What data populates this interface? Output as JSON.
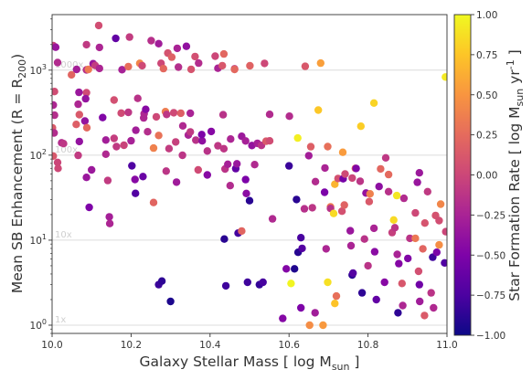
{
  "chart_data": {
    "type": "scatter",
    "xlabel": "Galaxy Stellar Mass [ log M",
    "xlabel_sub": "sun",
    "xlabel_end": " ]",
    "ylabel": "Mean SB Enhancement (R = R",
    "ylabel_sub": "200",
    "ylabel_end": ")",
    "xlim": [
      10.0,
      11.0
    ],
    "ylim": [
      0.8,
      4500
    ],
    "yscale": "log",
    "x_ticks": [
      10.0,
      10.2,
      10.4,
      10.6,
      10.8,
      11.0
    ],
    "x_tick_labels": [
      "10.0",
      "10.2",
      "10.4",
      "10.6",
      "10.8",
      "11.0"
    ],
    "y_ticks": [
      1,
      10,
      100,
      1000
    ],
    "y_tick_base": "10",
    "y_tick_exponents": [
      "0",
      "1",
      "2",
      "3"
    ],
    "reference_lines": [
      {
        "value": 1,
        "label": "1x"
      },
      {
        "value": 10,
        "label": "10x"
      },
      {
        "value": 100,
        "label": "100x"
      },
      {
        "value": 1000,
        "label": "1000x"
      }
    ],
    "colorbar": {
      "label": "Star Formation Rate [ log M",
      "label_sub": "sun",
      "label_mid": " yr",
      "label_sup": "-1",
      "label_end": " ]",
      "range": [
        -1.0,
        1.0
      ],
      "colormap": "plasma",
      "ticks": [
        1.0,
        0.75,
        0.5,
        0.25,
        0.0,
        -0.25,
        -0.5,
        -0.75,
        -1.0
      ],
      "tick_labels": [
        "1.00",
        "0.75",
        "0.50",
        "0.25",
        "0.00",
        "−0.25",
        "−0.50",
        "−0.75",
        "−1.00"
      ]
    },
    "grid": false,
    "points": [
      {
        "x": 10.003,
        "y": 1939.7,
        "c": -0.03
      },
      {
        "x": 10.003,
        "y": 388.7,
        "c": -0.22
      },
      {
        "x": 10.001,
        "y": 209.9,
        "c": 0.14
      },
      {
        "x": 10.005,
        "y": 182.5,
        "c": -0.18
      },
      {
        "x": 10.009,
        "y": 1860.9,
        "c": -0.35
      },
      {
        "x": 10.006,
        "y": 559.8,
        "c": 0.04
      },
      {
        "x": 10.014,
        "y": 1227.3,
        "c": -0.19
      },
      {
        "x": 10.003,
        "y": 97.6,
        "c": 0.12
      },
      {
        "x": 10.014,
        "y": 82.1,
        "c": -0.01
      },
      {
        "x": 10.006,
        "y": 295.2,
        "c": -0.17
      },
      {
        "x": 10.015,
        "y": 69.9,
        "c": 0.01
      },
      {
        "x": 10.024,
        "y": 140.0,
        "c": -0.18
      },
      {
        "x": 10.029,
        "y": 136.6,
        "c": -0.11
      },
      {
        "x": 10.049,
        "y": 880.6,
        "c": 0.21
      },
      {
        "x": 10.061,
        "y": 229.7,
        "c": 0.17
      },
      {
        "x": 10.069,
        "y": 299.3,
        "c": 0.13
      },
      {
        "x": 10.066,
        "y": 396.9,
        "c": -0.22
      },
      {
        "x": 10.062,
        "y": 1019.8,
        "c": -0.28
      },
      {
        "x": 10.068,
        "y": 548.5,
        "c": -0.34
      },
      {
        "x": 10.069,
        "y": 144.6,
        "c": -0.38
      },
      {
        "x": 10.066,
        "y": 99.4,
        "c": -0.08
      },
      {
        "x": 10.087,
        "y": 1006.8,
        "c": -0.15
      },
      {
        "x": 10.083,
        "y": 252.1,
        "c": -0.37
      },
      {
        "x": 10.092,
        "y": 1018.6,
        "c": 0.34
      },
      {
        "x": 10.087,
        "y": 542.3,
        "c": 0.03
      },
      {
        "x": 10.088,
        "y": 210.2,
        "c": 0.23
      },
      {
        "x": 10.094,
        "y": 24.3,
        "c": -0.5
      },
      {
        "x": 10.087,
        "y": 1993.4,
        "c": -0.09
      },
      {
        "x": 10.085,
        "y": 461.4,
        "c": -0.37
      },
      {
        "x": 10.087,
        "y": 54.8,
        "c": -0.34
      },
      {
        "x": 10.1,
        "y": 67.0,
        "c": -0.33
      },
      {
        "x": 10.104,
        "y": 1190.7,
        "c": -0.35
      },
      {
        "x": 10.109,
        "y": 1133.6,
        "c": -0.07
      },
      {
        "x": 10.118,
        "y": 3351.2,
        "c": 0.05
      },
      {
        "x": 10.128,
        "y": 277.0,
        "c": -0.48
      },
      {
        "x": 10.12,
        "y": 1852.8,
        "c": -0.23
      },
      {
        "x": 10.12,
        "y": 1046.9,
        "c": -0.23
      },
      {
        "x": 10.136,
        "y": 150.7,
        "c": -0.29
      },
      {
        "x": 10.136,
        "y": 102.6,
        "c": -0.21
      },
      {
        "x": 10.141,
        "y": 50.3,
        "c": -0.08
      },
      {
        "x": 10.145,
        "y": 18.8,
        "c": -0.28
      },
      {
        "x": 10.146,
        "y": 15.7,
        "c": -0.23
      },
      {
        "x": 10.161,
        "y": 2365.5,
        "c": -0.64
      },
      {
        "x": 10.157,
        "y": 445.1,
        "c": 0.06
      },
      {
        "x": 10.157,
        "y": 157.6,
        "c": -0.06
      },
      {
        "x": 10.163,
        "y": 125.9,
        "c": -0.09
      },
      {
        "x": 10.177,
        "y": 1012.5,
        "c": -0.26
      },
      {
        "x": 10.175,
        "y": 312.3,
        "c": 0.03
      },
      {
        "x": 10.182,
        "y": 130.8,
        "c": -0.02
      },
      {
        "x": 10.193,
        "y": 1100.9,
        "c": 0.27
      },
      {
        "x": 10.193,
        "y": 318.9,
        "c": -0.11
      },
      {
        "x": 10.196,
        "y": 2449.8,
        "c": -0.07
      },
      {
        "x": 10.2,
        "y": 147.5,
        "c": -0.26
      },
      {
        "x": 10.202,
        "y": 74.9,
        "c": -0.73
      },
      {
        "x": 10.211,
        "y": 35.5,
        "c": -0.72
      },
      {
        "x": 10.212,
        "y": 196.2,
        "c": -0.29
      },
      {
        "x": 10.21,
        "y": 51.7,
        "c": -0.45
      },
      {
        "x": 10.217,
        "y": 465.6,
        "c": -0.14
      },
      {
        "x": 10.222,
        "y": 1205.1,
        "c": 0.41
      },
      {
        "x": 10.228,
        "y": 1127.8,
        "c": 0.02
      },
      {
        "x": 10.23,
        "y": 56.0,
        "c": -0.6
      },
      {
        "x": 10.232,
        "y": 273.8,
        "c": -0.22
      },
      {
        "x": 10.233,
        "y": 307.4,
        "c": -0.22
      },
      {
        "x": 10.237,
        "y": 346.3,
        "c": -0.45
      },
      {
        "x": 10.242,
        "y": 188.5,
        "c": -0.17
      },
      {
        "x": 10.251,
        "y": 2224.9,
        "c": -0.16
      },
      {
        "x": 10.257,
        "y": 121.2,
        "c": 0.38
      },
      {
        "x": 10.257,
        "y": 27.7,
        "c": 0.21
      },
      {
        "x": 10.264,
        "y": 282.6,
        "c": 0.01
      },
      {
        "x": 10.27,
        "y": 3.0,
        "c": -0.82
      },
      {
        "x": 10.278,
        "y": 3.3,
        "c": -0.87
      },
      {
        "x": 10.27,
        "y": 2051.1,
        "c": -0.3
      },
      {
        "x": 10.27,
        "y": 170.3,
        "c": 0.29
      },
      {
        "x": 10.276,
        "y": 1205.1,
        "c": 0.01
      },
      {
        "x": 10.282,
        "y": 1042.4,
        "c": 0.23
      },
      {
        "x": 10.287,
        "y": 324.9,
        "c": 0.35
      },
      {
        "x": 10.29,
        "y": 300.9,
        "c": -0.11
      },
      {
        "x": 10.289,
        "y": 64.9,
        "c": -0.12
      },
      {
        "x": 10.293,
        "y": 1586.6,
        "c": 0.08
      },
      {
        "x": 10.296,
        "y": 119.3,
        "c": -0.07
      },
      {
        "x": 10.3,
        "y": 1.9,
        "c": -0.94
      },
      {
        "x": 10.303,
        "y": 1419.3,
        "c": 0.18
      },
      {
        "x": 10.308,
        "y": 315.4,
        "c": 0.02
      },
      {
        "x": 10.313,
        "y": 143.0,
        "c": -0.04
      },
      {
        "x": 10.315,
        "y": 48.2,
        "c": -0.31
      },
      {
        "x": 10.317,
        "y": 1806.2,
        "c": -0.25
      },
      {
        "x": 10.32,
        "y": 1084.1,
        "c": -0.17
      },
      {
        "x": 10.326,
        "y": 311.8,
        "c": 0.17
      },
      {
        "x": 10.33,
        "y": 99.6,
        "c": -0.12
      },
      {
        "x": 10.331,
        "y": 221.0,
        "c": -0.21
      },
      {
        "x": 10.34,
        "y": 1905.7,
        "c": -0.39
      },
      {
        "x": 10.345,
        "y": 172.4,
        "c": -0.24
      },
      {
        "x": 10.35,
        "y": 310.6,
        "c": -0.25
      },
      {
        "x": 10.35,
        "y": 187.6,
        "c": -0.09
      },
      {
        "x": 10.352,
        "y": 1021.2,
        "c": 0.09
      },
      {
        "x": 10.362,
        "y": 1445.3,
        "c": 0.06
      },
      {
        "x": 10.364,
        "y": 150.4,
        "c": -0.14
      },
      {
        "x": 10.37,
        "y": 67.1,
        "c": 0.03
      },
      {
        "x": 10.371,
        "y": 1209.0,
        "c": -0.18
      },
      {
        "x": 10.38,
        "y": 147.4,
        "c": -0.4
      },
      {
        "x": 10.379,
        "y": 174.8,
        "c": -0.5
      },
      {
        "x": 10.393,
        "y": 58.6,
        "c": -0.45
      },
      {
        "x": 10.393,
        "y": 112.0,
        "c": -0.14
      },
      {
        "x": 10.413,
        "y": 1461.4,
        "c": 0.0
      },
      {
        "x": 10.403,
        "y": 189.9,
        "c": -0.45
      },
      {
        "x": 10.42,
        "y": 1052.2,
        "c": -0.24
      },
      {
        "x": 10.42,
        "y": 129.0,
        "c": -0.1
      },
      {
        "x": 10.435,
        "y": 1549.9,
        "c": 0.22
      },
      {
        "x": 10.431,
        "y": 1127.5,
        "c": 0.12
      },
      {
        "x": 10.433,
        "y": 299.1,
        "c": -0.14
      },
      {
        "x": 10.435,
        "y": 119.1,
        "c": -0.11
      },
      {
        "x": 10.438,
        "y": 68.8,
        "c": -0.13
      },
      {
        "x": 10.436,
        "y": 10.3,
        "c": -0.89
      },
      {
        "x": 10.44,
        "y": 2.9,
        "c": -0.8
      },
      {
        "x": 10.445,
        "y": 78.2,
        "c": -0.27
      },
      {
        "x": 10.451,
        "y": 43.8,
        "c": -0.19
      },
      {
        "x": 10.452,
        "y": 154.7,
        "c": -0.23
      },
      {
        "x": 10.462,
        "y": 1038.8,
        "c": -0.12
      },
      {
        "x": 10.462,
        "y": 1019.6,
        "c": 0.23
      },
      {
        "x": 10.465,
        "y": 69.5,
        "c": -0.64
      },
      {
        "x": 10.468,
        "y": 79.2,
        "c": -0.35
      },
      {
        "x": 10.471,
        "y": 12.1,
        "c": -0.78
      },
      {
        "x": 10.48,
        "y": 12.8,
        "c": 0.21
      },
      {
        "x": 10.48,
        "y": 166.5,
        "c": -0.33
      },
      {
        "x": 10.49,
        "y": 146.9,
        "c": -0.27
      },
      {
        "x": 10.49,
        "y": 51.6,
        "c": -0.51
      },
      {
        "x": 10.492,
        "y": 35.4,
        "c": -0.43
      },
      {
        "x": 10.495,
        "y": 3.2,
        "c": -0.8
      },
      {
        "x": 10.5,
        "y": 29.1,
        "c": -0.89
      },
      {
        "x": 10.501,
        "y": 1124.5,
        "c": 0.19
      },
      {
        "x": 10.506,
        "y": 129.7,
        "c": -0.38
      },
      {
        "x": 10.513,
        "y": 77.4,
        "c": -0.2
      },
      {
        "x": 10.52,
        "y": 137.8,
        "c": -0.27
      },
      {
        "x": 10.525,
        "y": 3.0,
        "c": -0.85
      },
      {
        "x": 10.53,
        "y": 130.1,
        "c": -0.13
      },
      {
        "x": 10.534,
        "y": 3.2,
        "c": -0.77
      },
      {
        "x": 10.538,
        "y": 1200.1,
        "c": 0.01
      },
      {
        "x": 10.542,
        "y": 146.0,
        "c": 0.13
      },
      {
        "x": 10.551,
        "y": 302.1,
        "c": -0.19
      },
      {
        "x": 10.551,
        "y": 147.4,
        "c": 0.04
      },
      {
        "x": 10.558,
        "y": 17.8,
        "c": -0.21
      },
      {
        "x": 10.584,
        "y": 1.2,
        "c": -0.46
      },
      {
        "x": 10.593,
        "y": 4.6,
        "c": -0.47
      },
      {
        "x": 10.605,
        "y": 3.1,
        "c": 0.98
      },
      {
        "x": 10.601,
        "y": 287.5,
        "c": -0.18
      },
      {
        "x": 10.6,
        "y": 74.8,
        "c": -0.82
      },
      {
        "x": 10.614,
        "y": 4.6,
        "c": -0.93
      },
      {
        "x": 10.622,
        "y": 158.9,
        "c": 0.95
      },
      {
        "x": 10.619,
        "y": 30.1,
        "c": -0.89
      },
      {
        "x": 10.63,
        "y": 1.6,
        "c": -0.5
      },
      {
        "x": 10.623,
        "y": 7.2,
        "c": -0.9
      },
      {
        "x": 10.63,
        "y": 10.7,
        "c": -0.76
      },
      {
        "x": 10.633,
        "y": 8.0,
        "c": -0.71
      },
      {
        "x": 10.639,
        "y": 23.4,
        "c": -0.16
      },
      {
        "x": 10.641,
        "y": 1110.0,
        "c": 0.12
      },
      {
        "x": 10.65,
        "y": 98.6,
        "c": -0.29
      },
      {
        "x": 10.652,
        "y": 1.0,
        "c": 0.45
      },
      {
        "x": 10.655,
        "y": 125.6,
        "c": 0.17
      },
      {
        "x": 10.659,
        "y": 24.1,
        "c": -0.12
      },
      {
        "x": 10.666,
        "y": 1.4,
        "c": -0.3
      },
      {
        "x": 10.667,
        "y": 48.9,
        "c": -0.19
      },
      {
        "x": 10.674,
        "y": 339.1,
        "c": 0.76
      },
      {
        "x": 10.68,
        "y": 1208.3,
        "c": 0.55
      },
      {
        "x": 10.686,
        "y": 1.0,
        "c": 0.52
      },
      {
        "x": 10.69,
        "y": 36.6,
        "c": -0.51
      },
      {
        "x": 10.691,
        "y": 70.7,
        "c": -0.24
      },
      {
        "x": 10.694,
        "y": 7.9,
        "c": -0.23
      },
      {
        "x": 10.698,
        "y": 3.2,
        "c": 0.88
      },
      {
        "x": 10.698,
        "y": 126.1,
        "c": 0.28
      },
      {
        "x": 10.705,
        "y": 24.6,
        "c": 0.35
      },
      {
        "x": 10.705,
        "y": 23.6,
        "c": -0.14
      },
      {
        "x": 10.713,
        "y": 20.6,
        "c": 0.85
      },
      {
        "x": 10.716,
        "y": 45.5,
        "c": 0.66
      },
      {
        "x": 10.716,
        "y": 1.8,
        "c": 0.74
      },
      {
        "x": 10.72,
        "y": 2.2,
        "c": 0.28
      },
      {
        "x": 10.724,
        "y": 53.2,
        "c": 0.07
      },
      {
        "x": 10.734,
        "y": 21.9,
        "c": 0.07
      },
      {
        "x": 10.736,
        "y": 108.0,
        "c": 0.53
      },
      {
        "x": 10.737,
        "y": 52.8,
        "c": -0.54
      },
      {
        "x": 10.74,
        "y": 25.9,
        "c": 0.19
      },
      {
        "x": 10.742,
        "y": 60.0,
        "c": 0.02
      },
      {
        "x": 10.755,
        "y": 12.9,
        "c": -0.34
      },
      {
        "x": 10.757,
        "y": 8.6,
        "c": -0.24
      },
      {
        "x": 10.76,
        "y": 3.9,
        "c": -0.89
      },
      {
        "x": 10.76,
        "y": 53.8,
        "c": -0.01
      },
      {
        "x": 10.762,
        "y": 4.1,
        "c": -0.71
      },
      {
        "x": 10.768,
        "y": 69.9,
        "c": 0.19
      },
      {
        "x": 10.77,
        "y": 69.7,
        "c": -0.48
      },
      {
        "x": 10.78,
        "y": 49.4,
        "c": -0.12
      },
      {
        "x": 10.782,
        "y": 218.8,
        "c": 0.79
      },
      {
        "x": 10.785,
        "y": 2.4,
        "c": -0.87
      },
      {
        "x": 10.791,
        "y": 10.3,
        "c": -0.14
      },
      {
        "x": 10.795,
        "y": 35.9,
        "c": -0.38
      },
      {
        "x": 10.8,
        "y": 5.0,
        "c": -0.13
      },
      {
        "x": 10.803,
        "y": 28.4,
        "c": 0.13
      },
      {
        "x": 10.805,
        "y": 35.1,
        "c": 0.38
      },
      {
        "x": 10.815,
        "y": 13.8,
        "c": -0.24
      },
      {
        "x": 10.815,
        "y": 409.9,
        "c": 0.82
      },
      {
        "x": 10.817,
        "y": 7.3,
        "c": -0.43
      },
      {
        "x": 10.821,
        "y": 2.0,
        "c": -0.64
      },
      {
        "x": 10.828,
        "y": 42.8,
        "c": -0.41
      },
      {
        "x": 10.832,
        "y": 68.9,
        "c": 0.22
      },
      {
        "x": 10.842,
        "y": 3.2,
        "c": -0.45
      },
      {
        "x": 10.845,
        "y": 92.9,
        "c": -0.1
      },
      {
        "x": 10.852,
        "y": 37.2,
        "c": -0.15
      },
      {
        "x": 10.852,
        "y": 59.1,
        "c": 0.24
      },
      {
        "x": 10.861,
        "y": 12.3,
        "c": -0.05
      },
      {
        "x": 10.865,
        "y": 17.3,
        "c": 0.85
      },
      {
        "x": 10.868,
        "y": 14.0,
        "c": -0.12
      },
      {
        "x": 10.873,
        "y": 33.5,
        "c": 0.92
      },
      {
        "x": 10.874,
        "y": 6.8,
        "c": -0.25
      },
      {
        "x": 10.876,
        "y": 1.4,
        "c": -0.87
      },
      {
        "x": 10.878,
        "y": 5.3,
        "c": -0.46
      },
      {
        "x": 10.886,
        "y": 3.1,
        "c": 0.11
      },
      {
        "x": 10.888,
        "y": 1.7,
        "c": -0.22
      },
      {
        "x": 10.891,
        "y": 31.1,
        "c": -0.19
      },
      {
        "x": 10.901,
        "y": 6.1,
        "c": -0.48
      },
      {
        "x": 10.906,
        "y": 10.5,
        "c": -0.13
      },
      {
        "x": 10.92,
        "y": 10.5,
        "c": 0.33
      },
      {
        "x": 10.92,
        "y": 20.9,
        "c": 0.01
      },
      {
        "x": 10.925,
        "y": 47.9,
        "c": -0.35
      },
      {
        "x": 10.928,
        "y": 4.3,
        "c": 0.06
      },
      {
        "x": 10.93,
        "y": 3.0,
        "c": -0.57
      },
      {
        "x": 10.93,
        "y": 62.0,
        "c": -0.33
      },
      {
        "x": 10.931,
        "y": 1.9,
        "c": -0.3
      },
      {
        "x": 10.939,
        "y": 7.9,
        "c": 0.21
      },
      {
        "x": 10.943,
        "y": 1.3,
        "c": 0.14
      },
      {
        "x": 10.944,
        "y": 15.9,
        "c": 0.09
      },
      {
        "x": 10.951,
        "y": 37.2,
        "c": -0.09
      },
      {
        "x": 10.96,
        "y": 2.4,
        "c": -0.13
      },
      {
        "x": 10.964,
        "y": 6.3,
        "c": -0.8
      },
      {
        "x": 10.966,
        "y": 1.6,
        "c": -0.21
      },
      {
        "x": 10.971,
        "y": 19.5,
        "c": 0.08
      },
      {
        "x": 10.974,
        "y": 7.2,
        "c": -0.51
      },
      {
        "x": 10.98,
        "y": 17.0,
        "c": 0.05
      },
      {
        "x": 10.98,
        "y": 8.8,
        "c": 0.46
      },
      {
        "x": 10.984,
        "y": 26.5,
        "c": 0.41
      },
      {
        "x": 10.994,
        "y": 5.4,
        "c": -0.73
      },
      {
        "x": 10.996,
        "y": 830.0,
        "c": 0.93
      },
      {
        "x": 10.997,
        "y": 12.6,
        "c": -0.01
      }
    ]
  }
}
